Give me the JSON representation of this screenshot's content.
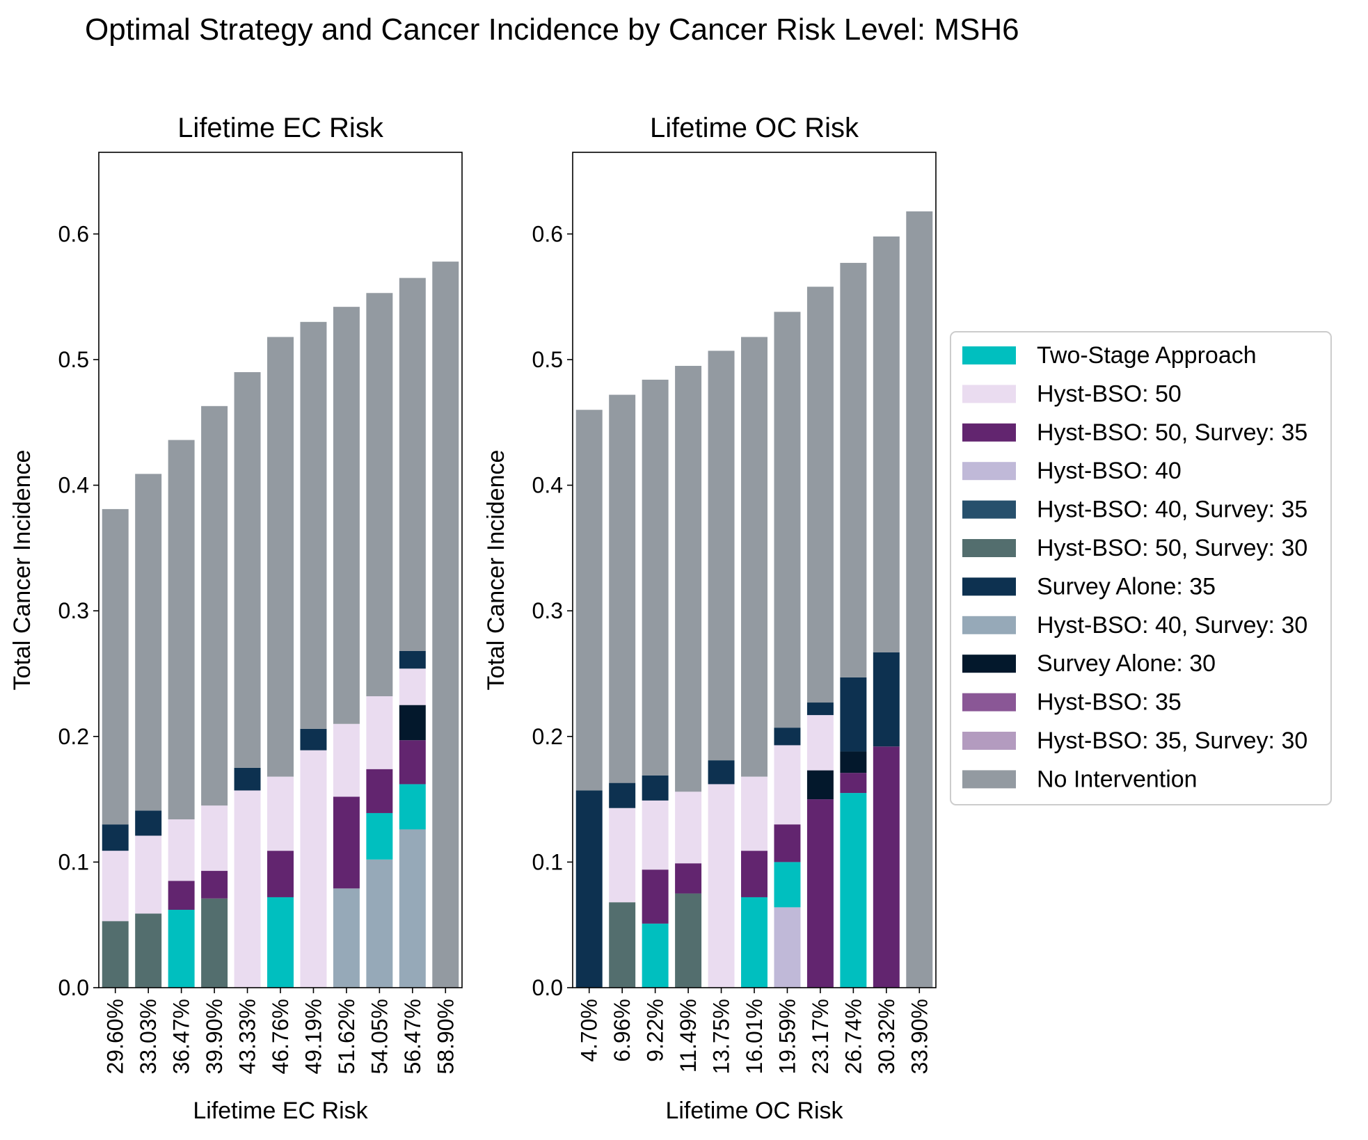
{
  "figure": {
    "title": "Optimal Strategy and Cancer Incidence by Cancer Risk Level: MSH6"
  },
  "legend": {
    "placement": "right",
    "entries": [
      {
        "key": "two_stage",
        "label": "Two-Stage Approach",
        "color": "#00bfbf"
      },
      {
        "key": "hb50",
        "label": "Hyst-BSO: 50",
        "color": "#eadcf0"
      },
      {
        "key": "hb50s35",
        "label": "Hyst-BSO: 50, Survey: 35",
        "color": "#62256f"
      },
      {
        "key": "hb40",
        "label": "Hyst-BSO: 40",
        "color": "#c0b9d8"
      },
      {
        "key": "hb40s35",
        "label": "Hyst-BSO: 40, Survey: 35",
        "color": "#27506c"
      },
      {
        "key": "hb50s30",
        "label": "Hyst-BSO: 50, Survey: 30",
        "color": "#536e6e"
      },
      {
        "key": "sa35",
        "label": "Survey Alone: 35",
        "color": "#0d3150"
      },
      {
        "key": "hb40s30",
        "label": "Hyst-BSO: 40, Survey: 30",
        "color": "#96a9b8"
      },
      {
        "key": "sa30",
        "label": "Survey Alone: 30",
        "color": "#03182c"
      },
      {
        "key": "hb35",
        "label": "Hyst-BSO: 35",
        "color": "#8a5796"
      },
      {
        "key": "hb35s30",
        "label": "Hyst-BSO: 35, Survey: 30",
        "color": "#b39bbf"
      },
      {
        "key": "none",
        "label": "No Intervention",
        "color": "#939aa1"
      }
    ]
  },
  "chart_data": [
    {
      "type": "bar",
      "stacked": true,
      "title": "Lifetime EC Risk",
      "xlabel": "Lifetime EC Risk",
      "ylabel": "Total Cancer Incidence",
      "ylim": [
        0,
        0.665
      ],
      "yticks": [
        "0.0",
        "0.1",
        "0.2",
        "0.3",
        "0.4",
        "0.5",
        "0.6"
      ],
      "grid": false,
      "categories": [
        "29.60%",
        "33.03%",
        "36.47%",
        "39.90%",
        "43.33%",
        "46.76%",
        "49.19%",
        "51.62%",
        "54.05%",
        "56.47%",
        "58.90%"
      ],
      "bars": [
        [
          {
            "s": "hb50s30",
            "v": 0.053
          },
          {
            "s": "hb50",
            "v": 0.056
          },
          {
            "s": "sa35",
            "v": 0.021
          },
          {
            "s": "none",
            "v": 0.251
          }
        ],
        [
          {
            "s": "hb50s30",
            "v": 0.059
          },
          {
            "s": "hb50",
            "v": 0.062
          },
          {
            "s": "sa35",
            "v": 0.02
          },
          {
            "s": "none",
            "v": 0.268
          }
        ],
        [
          {
            "s": "two_stage",
            "v": 0.062
          },
          {
            "s": "hb50s35",
            "v": 0.023
          },
          {
            "s": "hb50",
            "v": 0.049
          },
          {
            "s": "none",
            "v": 0.302
          }
        ],
        [
          {
            "s": "hb50s30",
            "v": 0.071
          },
          {
            "s": "hb50s35",
            "v": 0.022
          },
          {
            "s": "hb50",
            "v": 0.052
          },
          {
            "s": "none",
            "v": 0.318
          }
        ],
        [
          {
            "s": "hb50",
            "v": 0.157
          },
          {
            "s": "sa35",
            "v": 0.018
          },
          {
            "s": "none",
            "v": 0.315
          }
        ],
        [
          {
            "s": "two_stage",
            "v": 0.072
          },
          {
            "s": "hb50s35",
            "v": 0.037
          },
          {
            "s": "hb50",
            "v": 0.059
          },
          {
            "s": "none",
            "v": 0.35
          }
        ],
        [
          {
            "s": "hb50",
            "v": 0.189
          },
          {
            "s": "sa35",
            "v": 0.017
          },
          {
            "s": "none",
            "v": 0.324
          }
        ],
        [
          {
            "s": "hb40s30",
            "v": 0.079
          },
          {
            "s": "hb50s35",
            "v": 0.073
          },
          {
            "s": "hb50",
            "v": 0.058
          },
          {
            "s": "none",
            "v": 0.332
          }
        ],
        [
          {
            "s": "hb40s30",
            "v": 0.102
          },
          {
            "s": "two_stage",
            "v": 0.037
          },
          {
            "s": "hb50s35",
            "v": 0.035
          },
          {
            "s": "hb50",
            "v": 0.058
          },
          {
            "s": "none",
            "v": 0.321
          }
        ],
        [
          {
            "s": "hb40s30",
            "v": 0.126
          },
          {
            "s": "two_stage",
            "v": 0.036
          },
          {
            "s": "hb50s35",
            "v": 0.035
          },
          {
            "s": "sa30",
            "v": 0.028
          },
          {
            "s": "hb50",
            "v": 0.029
          },
          {
            "s": "sa35",
            "v": 0.014
          },
          {
            "s": "none",
            "v": 0.297
          }
        ],
        [
          {
            "s": "none",
            "v": 0.578
          }
        ]
      ]
    },
    {
      "type": "bar",
      "stacked": true,
      "title": "Lifetime OC Risk",
      "xlabel": "Lifetime OC Risk",
      "ylabel": "Total Cancer Incidence",
      "ylim": [
        0,
        0.665
      ],
      "yticks": [
        "0.0",
        "0.1",
        "0.2",
        "0.3",
        "0.4",
        "0.5",
        "0.6"
      ],
      "grid": false,
      "categories": [
        "4.70%",
        "6.96%",
        "9.22%",
        "11.49%",
        "13.75%",
        "16.01%",
        "19.59%",
        "23.17%",
        "26.74%",
        "30.32%",
        "33.90%"
      ],
      "bars": [
        [
          {
            "s": "sa35",
            "v": 0.157
          },
          {
            "s": "none",
            "v": 0.303
          }
        ],
        [
          {
            "s": "hb50s30",
            "v": 0.068
          },
          {
            "s": "hb50",
            "v": 0.075
          },
          {
            "s": "sa35",
            "v": 0.02
          },
          {
            "s": "none",
            "v": 0.309
          }
        ],
        [
          {
            "s": "two_stage",
            "v": 0.051
          },
          {
            "s": "hb50s35",
            "v": 0.043
          },
          {
            "s": "hb50",
            "v": 0.055
          },
          {
            "s": "sa35",
            "v": 0.02
          },
          {
            "s": "none",
            "v": 0.315
          }
        ],
        [
          {
            "s": "hb50s30",
            "v": 0.075
          },
          {
            "s": "hb50s35",
            "v": 0.024
          },
          {
            "s": "hb50",
            "v": 0.057
          },
          {
            "s": "none",
            "v": 0.339
          }
        ],
        [
          {
            "s": "hb50",
            "v": 0.162
          },
          {
            "s": "sa35",
            "v": 0.019
          },
          {
            "s": "none",
            "v": 0.326
          }
        ],
        [
          {
            "s": "two_stage",
            "v": 0.072
          },
          {
            "s": "hb50s35",
            "v": 0.037
          },
          {
            "s": "hb50",
            "v": 0.059
          },
          {
            "s": "none",
            "v": 0.35
          }
        ],
        [
          {
            "s": "hb40",
            "v": 0.064
          },
          {
            "s": "two_stage",
            "v": 0.036
          },
          {
            "s": "hb50s35",
            "v": 0.03
          },
          {
            "s": "hb50",
            "v": 0.063
          },
          {
            "s": "sa35",
            "v": 0.014
          },
          {
            "s": "none",
            "v": 0.331
          }
        ],
        [
          {
            "s": "hb50s35",
            "v": 0.15
          },
          {
            "s": "sa30",
            "v": 0.023
          },
          {
            "s": "hb50",
            "v": 0.044
          },
          {
            "s": "sa35",
            "v": 0.01
          },
          {
            "s": "none",
            "v": 0.331
          }
        ],
        [
          {
            "s": "two_stage",
            "v": 0.155
          },
          {
            "s": "hb50s35",
            "v": 0.016
          },
          {
            "s": "sa30",
            "v": 0.017
          },
          {
            "s": "sa35",
            "v": 0.059
          },
          {
            "s": "none",
            "v": 0.33
          }
        ],
        [
          {
            "s": "hb50s35",
            "v": 0.192
          },
          {
            "s": "sa35",
            "v": 0.075
          },
          {
            "s": "none",
            "v": 0.331
          }
        ],
        [
          {
            "s": "none",
            "v": 0.618
          }
        ]
      ]
    }
  ]
}
